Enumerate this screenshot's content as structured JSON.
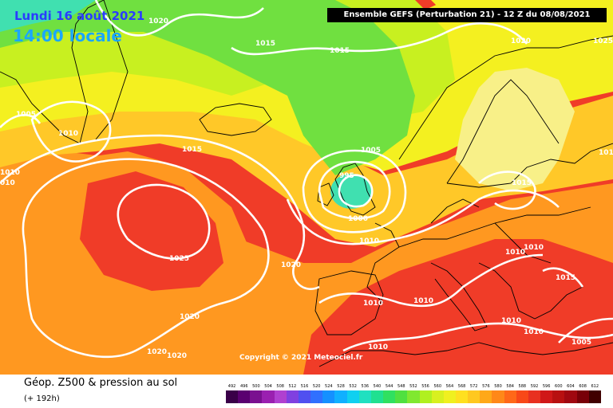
{
  "title": {
    "date": "Lundi 16 août 2021",
    "time": "14:00 locale"
  },
  "run_info": "Ensemble GEFS  (Perturbation 21)  -  12 Z du 08/08/2021",
  "copyright": "Copyright © 2021 Meteociel.fr",
  "legend": {
    "title": "Géop. Z500 & pression au sol",
    "subtitle": "(+ 192h)",
    "scale_values": [
      "492",
      "496",
      "500",
      "504",
      "508",
      "512",
      "516",
      "520",
      "524",
      "528",
      "532",
      "536",
      "540",
      "544",
      "548",
      "552",
      "556",
      "560",
      "564",
      "568",
      "572",
      "576",
      "580",
      "584",
      "588",
      "592",
      "596",
      "600",
      "604",
      "608",
      "612"
    ],
    "scale_colors": [
      "#3a0048",
      "#5a0070",
      "#7a1090",
      "#9a20b0",
      "#b040d0",
      "#8040e0",
      "#5050f0",
      "#3070ff",
      "#1590ff",
      "#10b0ff",
      "#10d0f0",
      "#20e0c0",
      "#20e090",
      "#30e060",
      "#50e040",
      "#80e830",
      "#b0f020",
      "#d8f020",
      "#f0f020",
      "#ffe020",
      "#ffc820",
      "#ffa818",
      "#ff8818",
      "#ff6818",
      "#f84818",
      "#e83020",
      "#d01818",
      "#b81010",
      "#a00810",
      "#780008",
      "#400000"
    ]
  },
  "map": {
    "colors": {
      "background": "#f07820",
      "cyan": "#40e0b0",
      "green": "#70e040",
      "yellow_green": "#c8f020",
      "yellow": "#f4f020",
      "pale_yellow": "#f8f088",
      "light_orange": "#ffc828",
      "orange": "#ff9820",
      "red": "#f03c28",
      "isobar": "#ffffff",
      "coast": "#000000"
    },
    "isobar_labels": [
      {
        "text": "1020"
      },
      {
        "text": "1015"
      },
      {
        "text": "1015"
      },
      {
        "text": "1020"
      },
      {
        "text": "1025"
      },
      {
        "text": "1005"
      },
      {
        "text": "1010"
      },
      {
        "text": "1015"
      },
      {
        "text": "1010"
      },
      {
        "text": "010"
      },
      {
        "text": "1005"
      },
      {
        "text": "995"
      },
      {
        "text": "1000"
      },
      {
        "text": "1010"
      },
      {
        "text": "1015"
      },
      {
        "text": "101"
      },
      {
        "text": "1025"
      },
      {
        "text": "1020"
      },
      {
        "text": "1020"
      },
      {
        "text": "1010"
      },
      {
        "text": "1010"
      },
      {
        "text": "1010"
      },
      {
        "text": "1010"
      },
      {
        "text": "1010"
      },
      {
        "text": "1020"
      },
      {
        "text": "1020"
      },
      {
        "text": "1010"
      },
      {
        "text": "1015"
      },
      {
        "text": "1010"
      },
      {
        "text": "1005"
      }
    ]
  }
}
